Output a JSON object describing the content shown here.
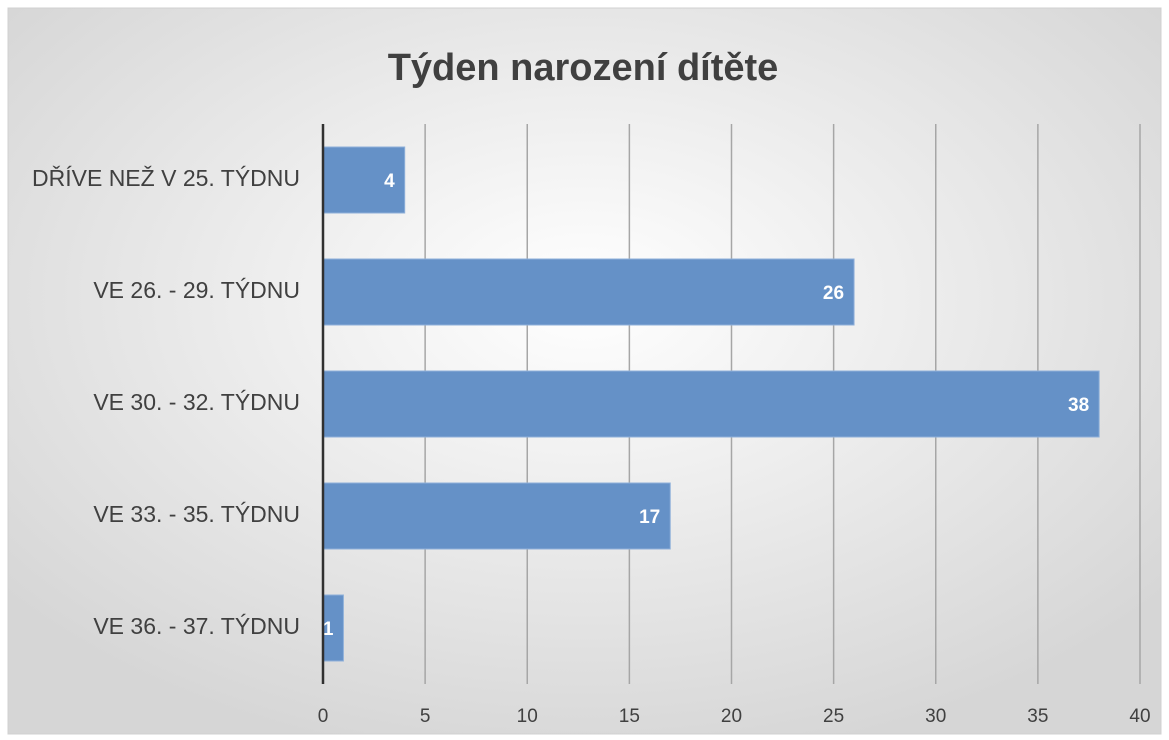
{
  "chart_data": {
    "type": "bar",
    "orientation": "horizontal",
    "title": "Týden narození dítěte",
    "categories": [
      "DŘÍVE NEŽ V 25. TÝDNU",
      "VE 26. - 29. TÝDNU",
      "VE 30. - 32. TÝDNU",
      "VE 33. - 35. TÝDNU",
      "VE 36. - 37. TÝDNU"
    ],
    "values": [
      4,
      26,
      38,
      17,
      1
    ],
    "color": "#6591c7",
    "xlim": [
      0,
      40
    ],
    "xticks": [
      0,
      5,
      10,
      15,
      20,
      25,
      30,
      35,
      40
    ],
    "grid": true
  }
}
